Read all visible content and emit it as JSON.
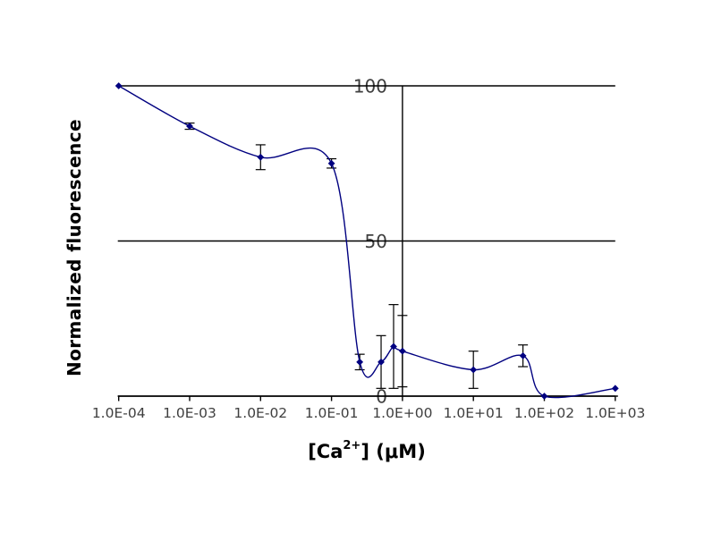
{
  "chart_data": {
    "type": "line",
    "title": "",
    "xlabel": "[Ca2+] (μM)",
    "xlabel_parts": {
      "pre": "[Ca",
      "sup": "2+",
      "post": "] (μM)"
    },
    "ylabel": "Normalized fluorescence",
    "x_scale": "log10",
    "xlim": [
      0.0001,
      1000
    ],
    "ylim": [
      0,
      100
    ],
    "grid": "horizontal",
    "legend": "none",
    "axis_cross_x": 1,
    "y_ticks": [
      {
        "value": 100,
        "label": "100"
      },
      {
        "value": 50,
        "label": "50"
      },
      {
        "value": 0,
        "label": "0"
      }
    ],
    "x_ticks": [
      {
        "value": 0.0001,
        "label": "1.0E-04"
      },
      {
        "value": 0.001,
        "label": "1.0E-03"
      },
      {
        "value": 0.01,
        "label": "1.0E-02"
      },
      {
        "value": 0.1,
        "label": "1.0E-01"
      },
      {
        "value": 1,
        "label": "1.0E+00"
      },
      {
        "value": 10,
        "label": "1.0E+01"
      },
      {
        "value": 100,
        "label": "1.0E+02"
      },
      {
        "value": 1000,
        "label": "1.0E+03"
      }
    ],
    "series": [
      {
        "name": "normalized-fluorescence",
        "marker": "diamond",
        "smoothed": true,
        "color": "#000080",
        "points": [
          {
            "x": 0.0001,
            "y": 100,
            "err": 0
          },
          {
            "x": 0.001,
            "y": 87,
            "err": 1
          },
          {
            "x": 0.01,
            "y": 77,
            "err": 4
          },
          {
            "x": 0.1,
            "y": 75,
            "err": 1.5
          },
          {
            "x": 0.25,
            "y": 11,
            "err": 2.5
          },
          {
            "x": 0.5,
            "y": 11,
            "err": 8.5
          },
          {
            "x": 0.75,
            "y": 16,
            "err": 13.5
          },
          {
            "x": 1,
            "y": 14.5,
            "err": 11.5
          },
          {
            "x": 10,
            "y": 8.5,
            "err": 6
          },
          {
            "x": 50,
            "y": 13,
            "err": 3.5
          },
          {
            "x": 100,
            "y": 0,
            "err": 0
          },
          {
            "x": 1000,
            "y": 2.5,
            "err": 0
          }
        ]
      }
    ],
    "colors": {
      "series": "#000080",
      "error_bar": "#000000",
      "grid": "#000000",
      "axis": "#000000",
      "tick_label": "#3f3f3f",
      "axis_title": "#000000",
      "background": "#ffffff"
    }
  }
}
